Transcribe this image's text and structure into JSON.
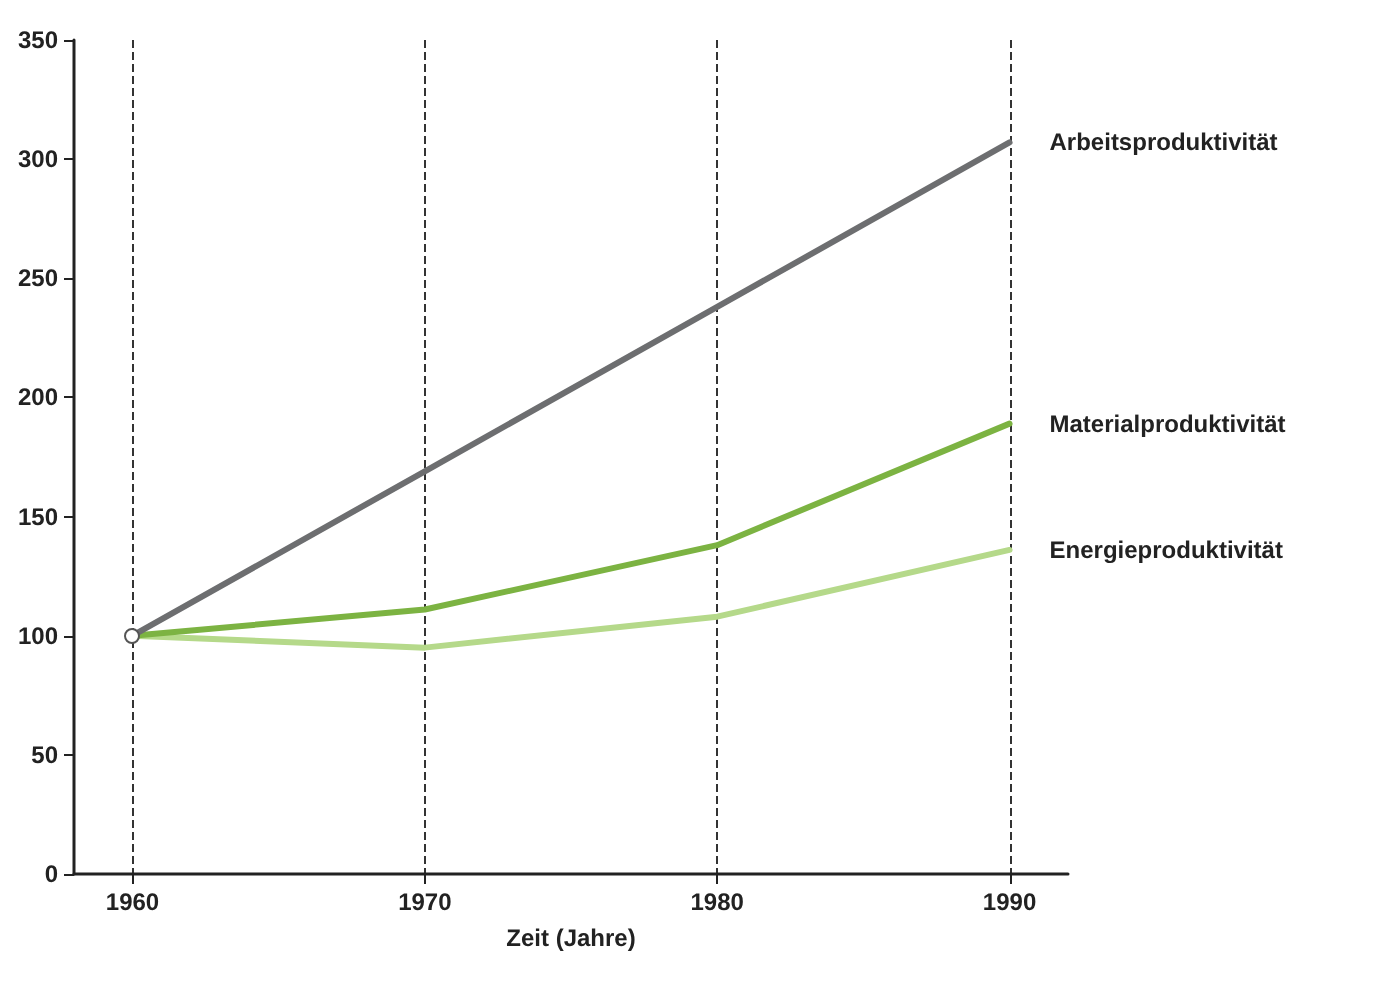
{
  "chart_data": {
    "type": "line",
    "xlabel": "Zeit (Jahre)",
    "x": [
      1960,
      1970,
      1980,
      1990
    ],
    "xlim": [
      1958,
      1992
    ],
    "xticks": [
      1960,
      1970,
      1980,
      1990
    ],
    "ylim": [
      0,
      350
    ],
    "yticks": [
      0,
      50,
      100,
      150,
      200,
      250,
      300,
      350
    ],
    "grid": "x",
    "line_style": "solid",
    "legend": false,
    "series": [
      {
        "name": "Arbeitsproduktivität",
        "color": "#6d6e70",
        "values": [
          100,
          169,
          238,
          307
        ]
      },
      {
        "name": "Materialproduktivität",
        "color": "#7cb342",
        "values": [
          100,
          111,
          138,
          189
        ]
      },
      {
        "name": "Energieproduktivität",
        "color": "#b5d98a",
        "values": [
          100,
          95,
          108,
          136
        ]
      }
    ]
  }
}
